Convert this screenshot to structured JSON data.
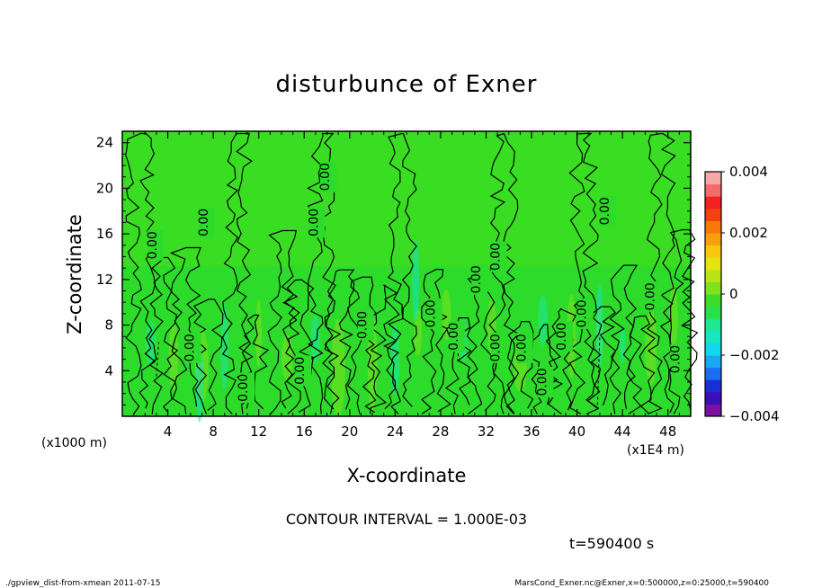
{
  "chart_data": {
    "type": "heatmap",
    "title": "disturbunce of Exner",
    "xlabel": "X-coordinate",
    "ylabel": "Z-coordinate",
    "x_ticks": [
      "4",
      "8",
      "12",
      "16",
      "20",
      "24",
      "28",
      "32",
      "36",
      "40",
      "44",
      "48"
    ],
    "x_unit": "(x1E4 m)",
    "y_ticks": [
      "4",
      "8",
      "12",
      "16",
      "20",
      "24"
    ],
    "y_unit": "(x1000 m)",
    "xlim": [
      0,
      50
    ],
    "ylim": [
      0,
      25
    ],
    "colorbar": {
      "ticks": [
        "0.004",
        "0.002",
        "0",
        "−0.002",
        "−0.004"
      ],
      "tick_values": [
        0.004,
        0.002,
        0,
        -0.002,
        -0.004
      ],
      "range": [
        -0.004,
        0.004
      ],
      "colors": [
        "#7a0fa0",
        "#3a0fb8",
        "#1a2ed8",
        "#1c6ef0",
        "#1aa8f0",
        "#12d8ee",
        "#14e8c0",
        "#1ee890",
        "#2ae04a",
        "#3edc2a",
        "#7ee21e",
        "#b8e414",
        "#e4e40e",
        "#f8c80c",
        "#f8a00c",
        "#f8780c",
        "#f54010",
        "#f52020",
        "#f56a6a",
        "#f8a8a8"
      ]
    },
    "contour_interval": "CONTOUR INTERVAL = 1.000E-03",
    "contour_labels": [
      "0.00",
      "0.00",
      "0.00",
      "0.00",
      "0.00",
      "0.00",
      "0.00",
      "0.00",
      "0.00",
      "0.00",
      "0.00",
      "0.00",
      "0.00",
      "0.00",
      "0.00",
      "0.00",
      "0.00",
      "0.00",
      "0.00",
      "0.00"
    ],
    "time_label": "t=590400 s",
    "background_value": 0,
    "grid": false
  },
  "footer": {
    "left": "./gpview_dist-from-xmean  2011-07-15",
    "right": "MarsCond_Exner.nc@Exner,x=0:500000,z=0:25000,t=590400"
  }
}
